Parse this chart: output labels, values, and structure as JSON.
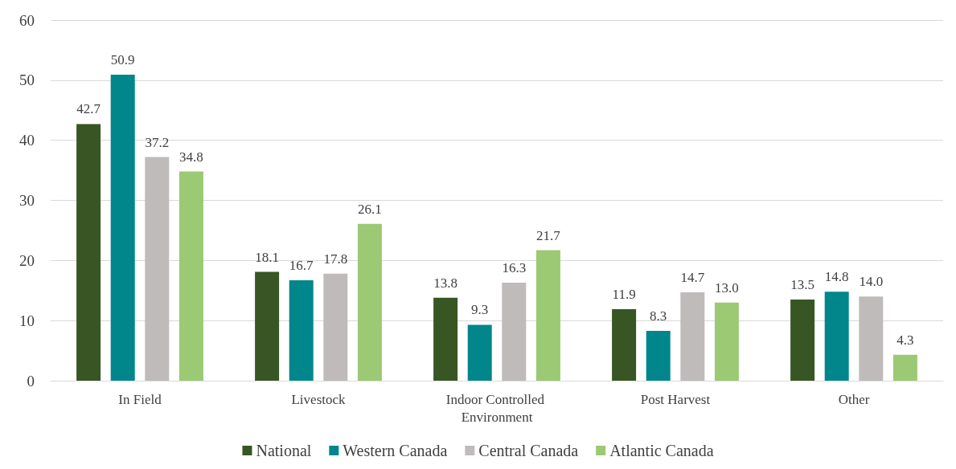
{
  "chart_data": {
    "type": "bar",
    "categories": [
      "In Field",
      "Livestock",
      "Indoor Controlled Environment",
      "Post Harvest",
      "Other"
    ],
    "series": [
      {
        "name": "National",
        "color": "#375623",
        "values": [
          42.7,
          18.1,
          13.8,
          11.9,
          13.5
        ]
      },
      {
        "name": "Western Canada",
        "color": "#00868b",
        "values": [
          50.9,
          16.7,
          9.3,
          8.3,
          14.8
        ]
      },
      {
        "name": "Central Canada",
        "color": "#bfbbbb",
        "values": [
          37.2,
          17.8,
          16.3,
          14.7,
          14.0
        ]
      },
      {
        "name": "Atlantic Canada",
        "color": "#9bc974",
        "values": [
          34.8,
          26.1,
          21.7,
          13.0,
          4.3
        ]
      }
    ],
    "value_labels": [
      [
        "42.7",
        "18.1",
        "13.8",
        "11.9",
        "13.5"
      ],
      [
        "50.9",
        "16.7",
        "9.3",
        "8.3",
        "14.8"
      ],
      [
        "37.2",
        "17.8",
        "16.3",
        "14.7",
        "14.0"
      ],
      [
        "34.8",
        "26.1",
        "21.7",
        "13.0",
        "4.3"
      ]
    ],
    "ylim": [
      0,
      60
    ],
    "yticks": [
      0,
      10,
      20,
      30,
      40,
      50,
      60
    ],
    "grid": "y",
    "legend": "bottom"
  }
}
